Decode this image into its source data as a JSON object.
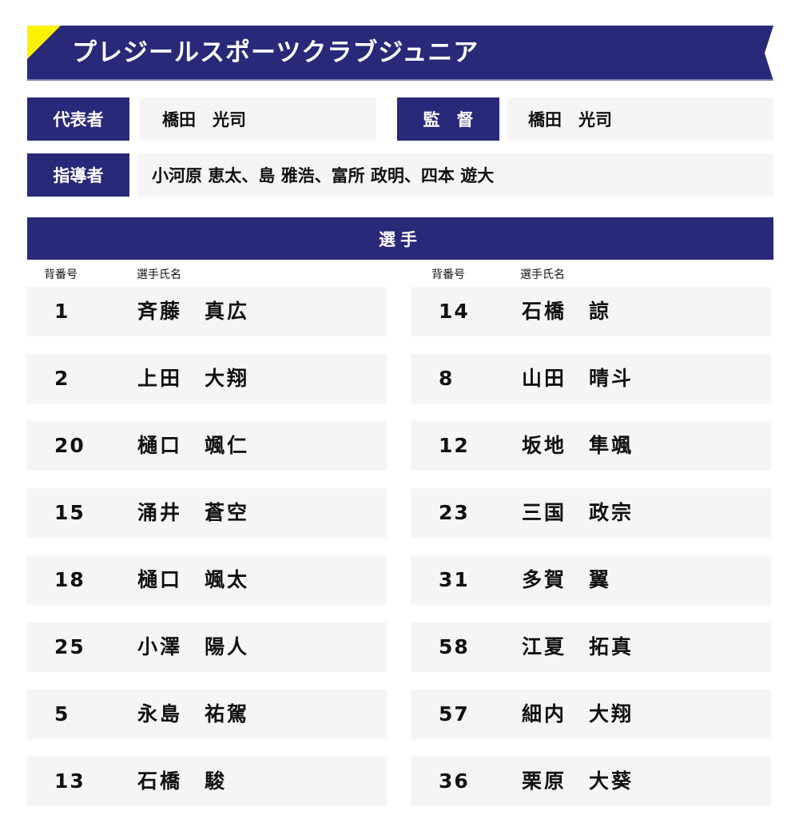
{
  "header": {
    "title": "プレジールスポーツクラブジュニア",
    "accent_color": "#fff200",
    "brand_color": "#29297a"
  },
  "staff": {
    "representative_label": "代表者",
    "representative_name": "橋田　光司",
    "manager_label": "監　督",
    "manager_name": "橋田　光司",
    "coaches_label": "指導者",
    "coaches_names": "小河原 恵太、島 雅浩、富所 政明、四本 遊大"
  },
  "players": {
    "heading": "選手",
    "number_header": "背番号",
    "name_header": "選手氏名",
    "left": [
      {
        "number": "1",
        "name": "斉藤　真広"
      },
      {
        "number": "2",
        "name": "上田　大翔"
      },
      {
        "number": "20",
        "name": "樋口　颯仁"
      },
      {
        "number": "15",
        "name": "涌井　蒼空"
      },
      {
        "number": "18",
        "name": "樋口　颯太"
      },
      {
        "number": "25",
        "name": "小澤　陽人"
      },
      {
        "number": "5",
        "name": "永島　祐駕"
      },
      {
        "number": "13",
        "name": "石橋　駿"
      }
    ],
    "right": [
      {
        "number": "14",
        "name": "石橋　諒"
      },
      {
        "number": "8",
        "name": "山田　晴斗"
      },
      {
        "number": "12",
        "name": "坂地　隼颯"
      },
      {
        "number": "23",
        "name": "三国　政宗"
      },
      {
        "number": "31",
        "name": "多賀　翼"
      },
      {
        "number": "58",
        "name": "江夏　拓真"
      },
      {
        "number": "57",
        "name": "細内　大翔"
      },
      {
        "number": "36",
        "name": "栗原　大葵"
      }
    ]
  }
}
